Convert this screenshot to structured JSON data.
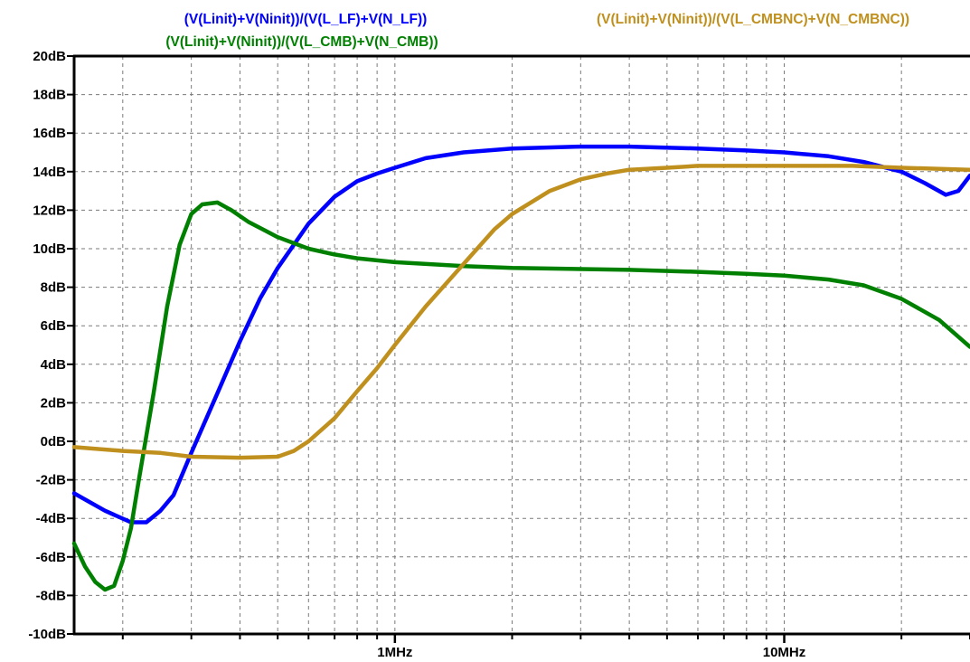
{
  "chart_data": {
    "type": "line",
    "title": "",
    "xlabel": "",
    "ylabel": "",
    "x_scale": "log",
    "xlim": [
      150000,
      30000000
    ],
    "ylim": [
      -10,
      20
    ],
    "grid": true,
    "y_ticks": [
      {
        "value": 20,
        "label": "20dB"
      },
      {
        "value": 18,
        "label": "18dB"
      },
      {
        "value": 16,
        "label": "16dB"
      },
      {
        "value": 14,
        "label": "14dB"
      },
      {
        "value": 12,
        "label": "12dB"
      },
      {
        "value": 10,
        "label": "10dB"
      },
      {
        "value": 8,
        "label": "8dB"
      },
      {
        "value": 6,
        "label": "6dB"
      },
      {
        "value": 4,
        "label": "4dB"
      },
      {
        "value": 2,
        "label": "2dB"
      },
      {
        "value": 0,
        "label": "0dB"
      },
      {
        "value": -2,
        "label": "-2dB"
      },
      {
        "value": -4,
        "label": "-4dB"
      },
      {
        "value": -6,
        "label": "-6dB"
      },
      {
        "value": -8,
        "label": "-8dB"
      },
      {
        "value": -10,
        "label": "-10dB"
      }
    ],
    "x_major_ticks": [
      {
        "value": 1000000,
        "label": "1MHz"
      },
      {
        "value": 10000000,
        "label": "10MHz"
      }
    ],
    "x_minor_ticks": [
      200000,
      300000,
      400000,
      500000,
      600000,
      700000,
      800000,
      900000,
      2000000,
      3000000,
      4000000,
      5000000,
      6000000,
      7000000,
      8000000,
      9000000,
      20000000,
      30000000
    ],
    "series": [
      {
        "name": "(V(Linit)+V(Ninit))/(V(L_LF)+V(N_LF))",
        "color": "#0000ff",
        "x": [
          150000,
          180000,
          210000,
          230000,
          250000,
          270000,
          300000,
          350000,
          400000,
          450000,
          500000,
          600000,
          700000,
          800000,
          900000,
          1000000,
          1200000,
          1500000,
          2000000,
          3000000,
          4000000,
          6000000,
          8000000,
          10000000,
          13000000,
          16000000,
          20000000,
          23000000,
          26000000,
          28000000,
          30000000
        ],
        "y": [
          -2.7,
          -3.6,
          -4.2,
          -4.2,
          -3.6,
          -2.8,
          -0.6,
          2.5,
          5.2,
          7.4,
          9.0,
          11.3,
          12.7,
          13.5,
          13.9,
          14.2,
          14.7,
          15.0,
          15.2,
          15.3,
          15.3,
          15.2,
          15.1,
          15.0,
          14.8,
          14.5,
          14.0,
          13.4,
          12.8,
          13.0,
          13.8
        ]
      },
      {
        "name": "(V(Linit)+V(Ninit))/(V(L_CMB)+V(N_CMB))",
        "color": "#008000",
        "x": [
          150000,
          160000,
          170000,
          180000,
          190000,
          200000,
          210000,
          220000,
          240000,
          260000,
          280000,
          300000,
          320000,
          350000,
          380000,
          420000,
          500000,
          600000,
          700000,
          800000,
          1000000,
          1500000,
          2000000,
          4000000,
          6000000,
          8000000,
          10000000,
          13000000,
          16000000,
          20000000,
          25000000,
          30000000
        ],
        "y": [
          -5.3,
          -6.5,
          -7.3,
          -7.7,
          -7.5,
          -6.2,
          -4.5,
          -2.0,
          2.5,
          7.0,
          10.2,
          11.8,
          12.3,
          12.4,
          12.0,
          11.4,
          10.6,
          10.0,
          9.7,
          9.5,
          9.3,
          9.1,
          9.0,
          8.9,
          8.8,
          8.7,
          8.6,
          8.4,
          8.1,
          7.4,
          6.3,
          4.9
        ]
      },
      {
        "name": "(V(Linit)+V(Ninit))/(V(L_CMBNC)+V(N_CMBNC))",
        "color": "#c0901e",
        "x": [
          150000,
          200000,
          250000,
          300000,
          400000,
          500000,
          550000,
          600000,
          700000,
          800000,
          900000,
          1000000,
          1200000,
          1500000,
          1800000,
          2000000,
          2500000,
          3000000,
          3500000,
          4000000,
          5000000,
          6000000,
          8000000,
          10000000,
          15000000,
          20000000,
          30000000
        ],
        "y": [
          -0.3,
          -0.5,
          -0.6,
          -0.8,
          -0.85,
          -0.8,
          -0.5,
          0.0,
          1.2,
          2.6,
          3.8,
          5.0,
          7.0,
          9.2,
          11.0,
          11.8,
          13.0,
          13.6,
          13.9,
          14.1,
          14.2,
          14.3,
          14.3,
          14.3,
          14.3,
          14.2,
          14.1
        ]
      }
    ]
  }
}
